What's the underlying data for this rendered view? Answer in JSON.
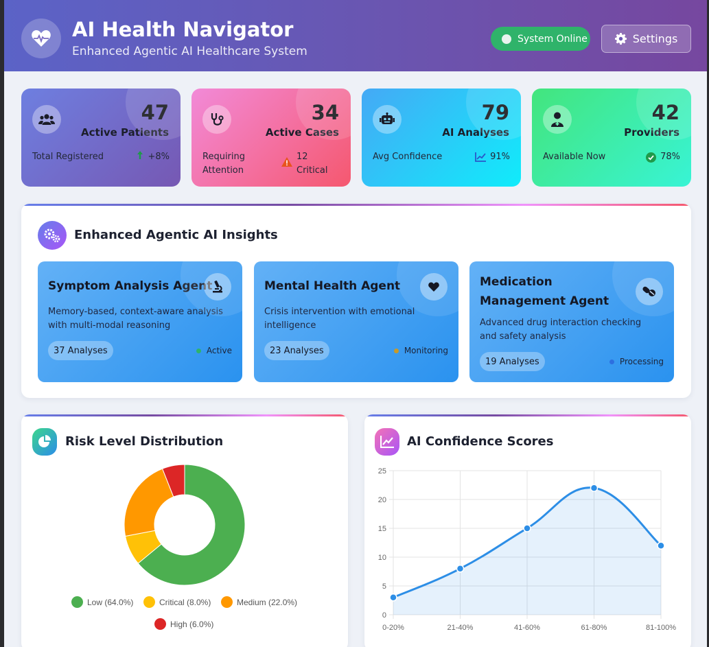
{
  "header": {
    "title": "AI Health Navigator",
    "subtitle": "Enhanced Agentic AI Healthcare System",
    "status": "System Online",
    "settings": "Settings"
  },
  "stats": [
    {
      "value": "47",
      "label": "Active Patients",
      "sub": "Total Registered",
      "trend": "+8%",
      "icon": "users-icon",
      "trend_icon": "arrow-up-icon"
    },
    {
      "value": "34",
      "label": "Active Cases",
      "sub": "Requiring Attention",
      "trend": "12 Critical",
      "icon": "stethoscope-icon",
      "trend_icon": "warning-icon"
    },
    {
      "value": "79",
      "label": "AI Analyses",
      "sub": "Avg Confidence",
      "trend": "91%",
      "icon": "robot-icon",
      "trend_icon": "chart-line-icon"
    },
    {
      "value": "42",
      "label": "Providers",
      "sub": "Available Now",
      "trend": "78%",
      "icon": "doctor-icon",
      "trend_icon": "check-circle-icon"
    }
  ],
  "insights": {
    "title": "Enhanced Agentic AI Insights",
    "agents": [
      {
        "name": "Symptom Analysis Agent",
        "description": "Memory-based, context-aware analysis with multi-modal reasoning",
        "count": "37 Analyses",
        "status": "Active",
        "status_color": "#2fb36a",
        "icon": "microscope-icon"
      },
      {
        "name": "Mental Health Agent",
        "description": "Crisis intervention with emotional intelligence",
        "count": "23 Analyses",
        "status": "Monitoring",
        "status_color": "#c79a2a",
        "icon": "heart-icon"
      },
      {
        "name": "Medication Management Agent",
        "description": "Advanced drug interaction checking and safety analysis",
        "count": "19 Analyses",
        "status": "Processing",
        "status_color": "#2d6fe0",
        "icon": "pills-icon"
      }
    ]
  },
  "risk_chart_title": "Risk Level Distribution",
  "confidence_chart_title": "AI Confidence Scores",
  "chart_data": [
    {
      "type": "pie",
      "title": "Risk Level Distribution",
      "categories": [
        "Low",
        "Critical",
        "Medium",
        "High"
      ],
      "values": [
        64.0,
        8.0,
        22.0,
        6.0
      ],
      "colors": [
        "#4caf50",
        "#ffc107",
        "#ff9800",
        "#dc2626"
      ],
      "legend_labels": [
        "Low (64.0%)",
        "Critical (8.0%)",
        "Medium (22.0%)",
        "High (6.0%)"
      ],
      "legend": "bottom",
      "donut": true
    },
    {
      "type": "line",
      "title": "AI Confidence Scores",
      "categories": [
        "0-20%",
        "21-40%",
        "41-60%",
        "61-80%",
        "81-100%"
      ],
      "values": [
        3,
        8,
        15,
        22,
        12
      ],
      "ylim": [
        0,
        25
      ],
      "yticks": [
        "0",
        "5",
        "10",
        "15",
        "20",
        "25"
      ],
      "color": "#2d8ee6",
      "fill": true,
      "grid": true
    }
  ]
}
